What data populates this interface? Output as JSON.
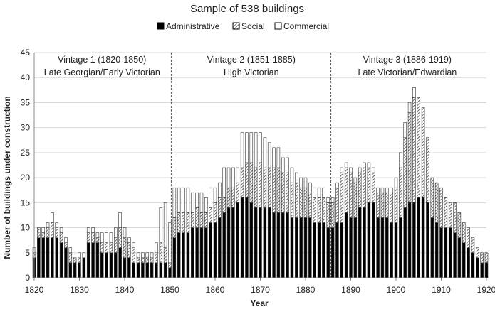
{
  "chart_data": {
    "type": "bar",
    "stacked": true,
    "title": "Sample of 538 buildings",
    "xlabel": "Year",
    "ylabel": "Number of buildings under construction",
    "ylim": [
      0,
      45
    ],
    "xlim": [
      1820,
      1920
    ],
    "yticks": [
      0,
      5,
      10,
      15,
      20,
      25,
      30,
      35,
      40,
      45
    ],
    "xticks": [
      1820,
      1830,
      1840,
      1850,
      1860,
      1870,
      1880,
      1890,
      1900,
      1910,
      1920
    ],
    "grid": true,
    "legend_position": "top",
    "x": [
      1820,
      1821,
      1822,
      1823,
      1824,
      1825,
      1826,
      1827,
      1828,
      1829,
      1830,
      1831,
      1832,
      1833,
      1834,
      1835,
      1836,
      1837,
      1838,
      1839,
      1840,
      1841,
      1842,
      1843,
      1844,
      1845,
      1846,
      1847,
      1848,
      1849,
      1850,
      1851,
      1852,
      1853,
      1854,
      1855,
      1856,
      1857,
      1858,
      1859,
      1860,
      1861,
      1862,
      1863,
      1864,
      1865,
      1866,
      1867,
      1868,
      1869,
      1870,
      1871,
      1872,
      1873,
      1874,
      1875,
      1876,
      1877,
      1878,
      1879,
      1880,
      1881,
      1882,
      1883,
      1884,
      1885,
      1886,
      1887,
      1888,
      1889,
      1890,
      1891,
      1892,
      1893,
      1894,
      1895,
      1896,
      1897,
      1898,
      1899,
      1900,
      1901,
      1902,
      1903,
      1904,
      1905,
      1906,
      1907,
      1908,
      1909,
      1910,
      1911,
      1912,
      1913,
      1914,
      1915,
      1916,
      1917,
      1918,
      1919,
      1920
    ],
    "series": [
      {
        "name": "Administrative",
        "pattern": "solid",
        "values": [
          4,
          8,
          8,
          8,
          8,
          8,
          7,
          6,
          3,
          3,
          3,
          4,
          7,
          7,
          7,
          5,
          5,
          5,
          5,
          6,
          4,
          4,
          3,
          3,
          3,
          3,
          3,
          3,
          3,
          3,
          2,
          8,
          9,
          9,
          9,
          10,
          10,
          10,
          10,
          11,
          11,
          12,
          13,
          14,
          14,
          15,
          16,
          16,
          15,
          14,
          14,
          14,
          14,
          13,
          13,
          13,
          13,
          12,
          12,
          12,
          12,
          12,
          11,
          11,
          11,
          10,
          10,
          11,
          11,
          13,
          12,
          12,
          14,
          14,
          15,
          15,
          12,
          12,
          12,
          11,
          11,
          12,
          14,
          15,
          15,
          16,
          16,
          15,
          12,
          11,
          10,
          10,
          10,
          9,
          8,
          7,
          6,
          5,
          4,
          3,
          3
        ]
      },
      {
        "name": "Social",
        "pattern": "hatched",
        "values": [
          1,
          2,
          1,
          2,
          3,
          2,
          2,
          1,
          2,
          1,
          1,
          0,
          2,
          2,
          1,
          2,
          2,
          2,
          3,
          4,
          4,
          3,
          3,
          1,
          1,
          1,
          1,
          2,
          4,
          3,
          1,
          4,
          4,
          4,
          4,
          3,
          4,
          3,
          3,
          3,
          4,
          4,
          3,
          4,
          4,
          4,
          6,
          7,
          8,
          8,
          9,
          8,
          8,
          9,
          9,
          8,
          8,
          7,
          7,
          6,
          6,
          5,
          5,
          5,
          5,
          5,
          5,
          7,
          10,
          9,
          9,
          7,
          7,
          8,
          7,
          6,
          5,
          5,
          5,
          6,
          7,
          10,
          14,
          18,
          21,
          20,
          18,
          13,
          8,
          8,
          8,
          6,
          5,
          6,
          5,
          4,
          4,
          3,
          2,
          2,
          2
        ]
      },
      {
        "name": "Commercial",
        "pattern": "white",
        "values": [
          1,
          0,
          1,
          1,
          2,
          1,
          1,
          1,
          1,
          0,
          1,
          1,
          1,
          1,
          1,
          2,
          2,
          2,
          2,
          3,
          2,
          1,
          1,
          1,
          1,
          1,
          1,
          2,
          7,
          9,
          8,
          6,
          5,
          5,
          5,
          4,
          3,
          4,
          3,
          4,
          3,
          3,
          6,
          4,
          4,
          3,
          7,
          6,
          6,
          7,
          6,
          6,
          5,
          4,
          4,
          3,
          3,
          3,
          2,
          2,
          2,
          2,
          2,
          2,
          2,
          1,
          1,
          1,
          1,
          1,
          1,
          1,
          1,
          1,
          1,
          1,
          1,
          1,
          1,
          1,
          2,
          3,
          3,
          2,
          2,
          0,
          0,
          0,
          0,
          0,
          0,
          0,
          0,
          0,
          0,
          0,
          0,
          0,
          0,
          0,
          0
        ]
      }
    ],
    "vintages": [
      {
        "line1": "Vintage 1 (1820-1850)",
        "line2": "Late Georgian/Early Victorian",
        "start": 1820,
        "end": 1850
      },
      {
        "line1": "Vintage 2 (1851-1885)",
        "line2": "High Victorian",
        "start": 1851,
        "end": 1885
      },
      {
        "line1": "Vintage 3 (1886-1919)",
        "line2": "Late Victorian/Edwardian",
        "start": 1886,
        "end": 1919
      }
    ],
    "dividers": [
      1850.3,
      1885.6
    ]
  }
}
